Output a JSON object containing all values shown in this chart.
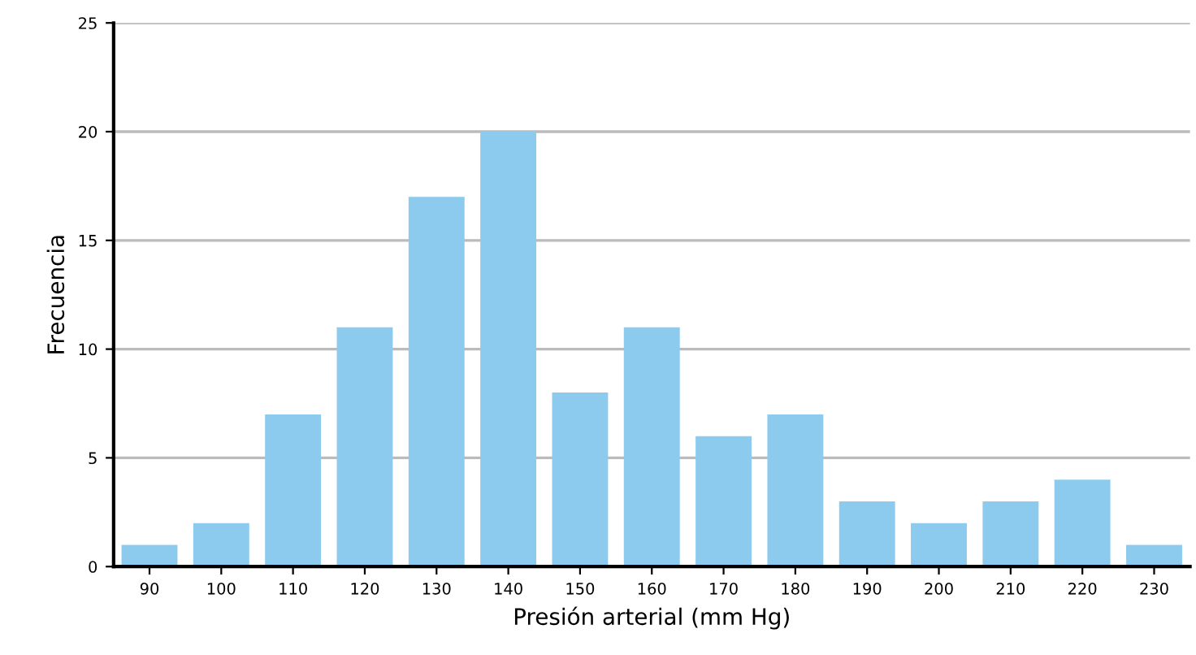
{
  "chart_data": {
    "type": "bar",
    "xlabel": "Presión arterial (mm Hg)",
    "ylabel": "Frecuencia",
    "categories": [
      "90",
      "100",
      "110",
      "120",
      "130",
      "140",
      "150",
      "160",
      "170",
      "180",
      "190",
      "200",
      "210",
      "220",
      "230"
    ],
    "values": [
      1,
      2,
      7,
      11,
      17,
      20,
      8,
      11,
      6,
      7,
      3,
      2,
      3,
      4,
      1
    ],
    "color": "#8ccbee",
    "ylim": [
      0,
      25
    ],
    "yticks": [
      0,
      5,
      10,
      15,
      20,
      25
    ],
    "grid": "y",
    "legend": false
  }
}
